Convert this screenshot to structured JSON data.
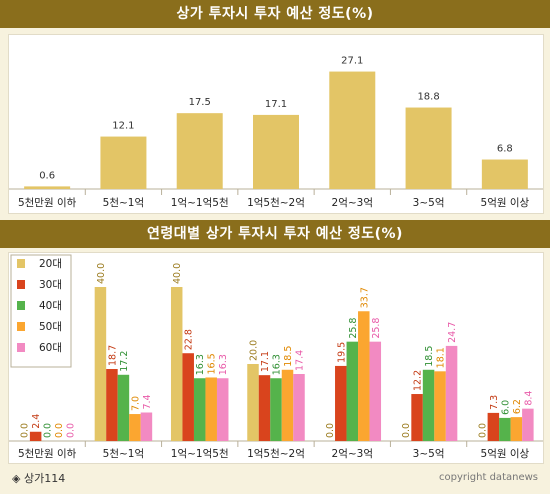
{
  "colors": {
    "band": "#8a6e1c",
    "bar_gold": "#e3c566",
    "series": [
      "#e3c566",
      "#d9441d",
      "#55b34b",
      "#fba630",
      "#f28ac2"
    ],
    "series_label": [
      "#9a7a1c",
      "#c43a13",
      "#2f8f33",
      "#e08800",
      "#e85aa8"
    ]
  },
  "chart_top": {
    "title": "상가 투자시 투자 예산 정도(%)"
  },
  "chart_bottom": {
    "title": "연령대별 상가 투자시 투자 예산 정도(%)"
  },
  "footer": {
    "source": "◈ 상가114",
    "copyright": "copyright datanews"
  },
  "chart_data": [
    {
      "type": "bar",
      "title": "상가 투자시 투자 예산 정도(%)",
      "categories": [
        "5천만원 이하",
        "5천~1억",
        "1억~1억5천",
        "1억5천~2억",
        "2억~3억",
        "3~5억",
        "5억원 이상"
      ],
      "values": [
        0.6,
        12.1,
        17.5,
        17.1,
        27.1,
        18.8,
        6.8
      ],
      "ylim": [
        0,
        30
      ],
      "grid": false,
      "legend": "none"
    },
    {
      "type": "bar",
      "title": "연령대별 상가 투자시 투자 예산 정도(%)",
      "categories": [
        "5천만원 이하",
        "5천~1억",
        "1억~1억5천",
        "1억5천~2억",
        "2억~3억",
        "3~5억",
        "5억원 이상"
      ],
      "series": [
        {
          "name": "20대",
          "values": [
            0.0,
            40.0,
            40.0,
            20.0,
            0.0,
            0.0,
            0.0
          ]
        },
        {
          "name": "30대",
          "values": [
            2.4,
            18.7,
            22.8,
            17.1,
            19.5,
            12.2,
            7.3
          ]
        },
        {
          "name": "40대",
          "values": [
            0.0,
            17.2,
            16.3,
            16.3,
            25.8,
            18.5,
            6.0
          ]
        },
        {
          "name": "50대",
          "values": [
            0.0,
            7.0,
            16.5,
            18.5,
            33.7,
            18.1,
            6.2
          ]
        },
        {
          "name": "60대",
          "values": [
            0.0,
            7.4,
            16.3,
            17.4,
            25.8,
            24.7,
            8.4
          ]
        }
      ],
      "ylim": [
        0,
        40
      ],
      "grid": false,
      "legend": "top-left"
    }
  ]
}
